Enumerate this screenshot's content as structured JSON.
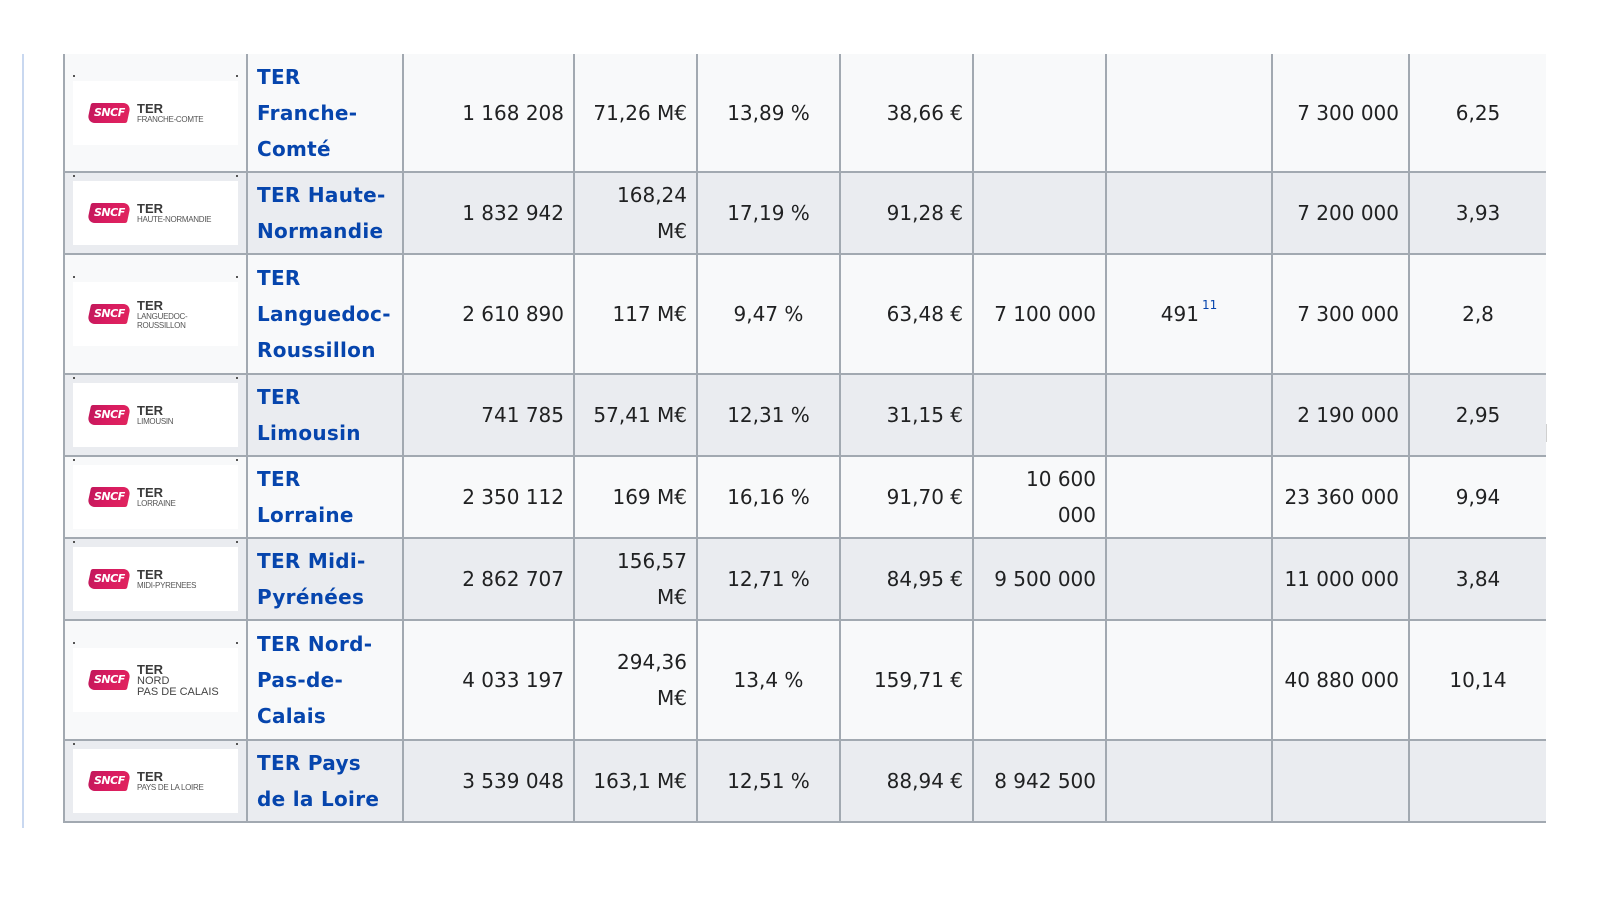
{
  "table": {
    "rows": [
      {
        "logo_main": "TER",
        "logo_region": "FRANCHE-COMTE",
        "logo_region_large": false,
        "name_lines": [
          "TER",
          "Franche-",
          "Comté"
        ],
        "col1": "1 168 208",
        "col2_lines": [
          "71,26 M€"
        ],
        "col3": "13,89 %",
        "col4": "38,66 €",
        "col5": "",
        "col6": "",
        "col6_ref": "",
        "col7": "7 300 000",
        "col8": "6,25"
      },
      {
        "logo_main": "TER",
        "logo_region": "HAUTE-NORMANDIE",
        "logo_region_large": false,
        "name_lines": [
          "TER Haute-",
          "Normandie"
        ],
        "col1": "1 832 942",
        "col2_lines": [
          "168,24",
          "M€"
        ],
        "col3": "17,19 %",
        "col4": "91,28 €",
        "col5": "",
        "col6": "",
        "col6_ref": "",
        "col7": "7 200 000",
        "col8": "3,93"
      },
      {
        "logo_main": "TER",
        "logo_region": "LANGUEDOC-\nROUSSILLON",
        "logo_region_large": false,
        "name_lines": [
          "TER",
          "Languedoc-",
          "Roussillon"
        ],
        "col1": "2 610 890",
        "col2_lines": [
          "117 M€"
        ],
        "col3": "9,47 %",
        "col4": "63,48 €",
        "col5": "7 100 000",
        "col6": "491",
        "col6_ref": "11",
        "col7": "7 300 000",
        "col8": "2,8"
      },
      {
        "logo_main": "TER",
        "logo_region": "LIMOUSIN",
        "logo_region_large": false,
        "name_lines": [
          "TER",
          "Limousin"
        ],
        "col1": "741 785",
        "col2_lines": [
          "57,41 M€"
        ],
        "col3": "12,31 %",
        "col4": "31,15 €",
        "col5": "",
        "col6": "",
        "col6_ref": "",
        "col7": "2 190 000",
        "col8": "2,95"
      },
      {
        "logo_main": "TER",
        "logo_region": "LORRAINE",
        "logo_region_large": false,
        "name_lines": [
          "TER",
          "Lorraine"
        ],
        "col1": "2 350 112",
        "col2_lines": [
          "169 M€"
        ],
        "col3": "16,16 %",
        "col4": "91,70 €",
        "col5": "10 600 000",
        "col6": "",
        "col6_ref": "",
        "col7": "23 360 000",
        "col8": "9,94"
      },
      {
        "logo_main": "TER",
        "logo_region": "MIDI-PYRENEES",
        "logo_region_large": false,
        "name_lines": [
          "TER Midi-",
          "Pyrénées"
        ],
        "col1": "2 862 707",
        "col2_lines": [
          "156,57",
          "M€"
        ],
        "col3": "12,71 %",
        "col4": "84,95 €",
        "col5": "9 500 000",
        "col6": "",
        "col6_ref": "",
        "col7": "11 000 000",
        "col8": "3,84"
      },
      {
        "logo_main": "TER",
        "logo_region": "NORD\nPAS DE CALAIS",
        "logo_region_large": true,
        "name_lines": [
          "TER Nord-",
          "Pas-de-",
          "Calais"
        ],
        "col1": "4 033 197",
        "col2_lines": [
          "294,36",
          "M€"
        ],
        "col3": "13,4 %",
        "col4": "159,71 €",
        "col5": "",
        "col6": "",
        "col6_ref": "",
        "col7": "40 880 000",
        "col8": "10,14"
      },
      {
        "logo_main": "TER",
        "logo_region": "PAYS DE LA LOIRE",
        "logo_region_large": false,
        "name_lines": [
          "TER Pays",
          "de la Loire"
        ],
        "col1": "3 539 048",
        "col2_lines": [
          "163,1 M€"
        ],
        "col3": "12,51 %",
        "col4": "88,94 €",
        "col5": "8 942 500",
        "col6": "",
        "col6_ref": "",
        "col7": "",
        "col8": ""
      }
    ]
  },
  "logo_brand": "SNCF",
  "colors": {
    "link": "#0645ad",
    "border": "#a2a9b1",
    "row_light": "#f8f9fa",
    "row_dark": "#eaecf0",
    "sncf_red": "#d81b60"
  }
}
